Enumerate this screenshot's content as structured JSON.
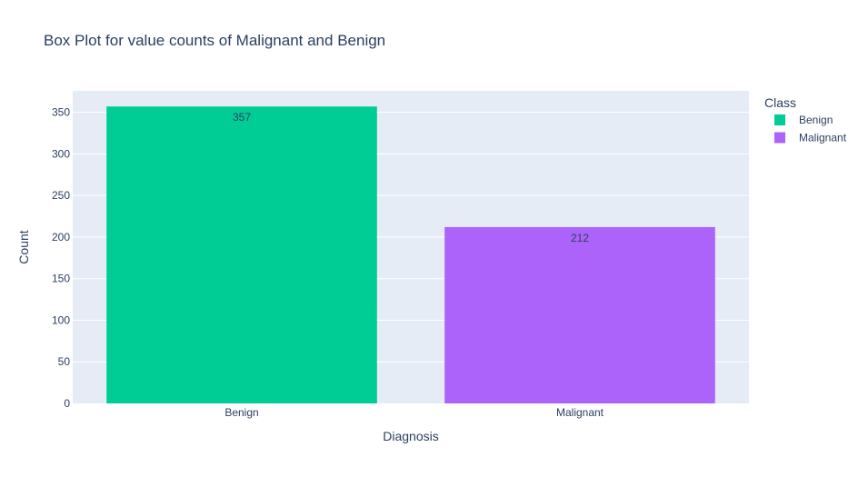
{
  "chart_data": {
    "type": "bar",
    "title": "Box Plot for value counts of Malignant and Benign",
    "xlabel": "Diagnosis",
    "ylabel": "Count",
    "categories": [
      "Benign",
      "Malignant"
    ],
    "values": [
      357,
      212
    ],
    "data_labels": [
      "357",
      "212"
    ],
    "ylim": [
      0,
      375.8
    ],
    "y_ticks": [
      0,
      50,
      100,
      150,
      200,
      250,
      300,
      350
    ],
    "y_tick_labels": [
      "0",
      "50",
      "100",
      "150",
      "200",
      "250",
      "300",
      "350"
    ],
    "grid": true,
    "legend": {
      "title": "Class",
      "placement": "top-right",
      "entries": [
        {
          "label": "Benign",
          "color": "#00cc96"
        },
        {
          "label": "Malignant",
          "color": "#ab63fa"
        }
      ]
    },
    "colors": {
      "plot_background": "#e5ecf6",
      "gridline": "#ffffff",
      "text": "#2a3f5f"
    }
  }
}
